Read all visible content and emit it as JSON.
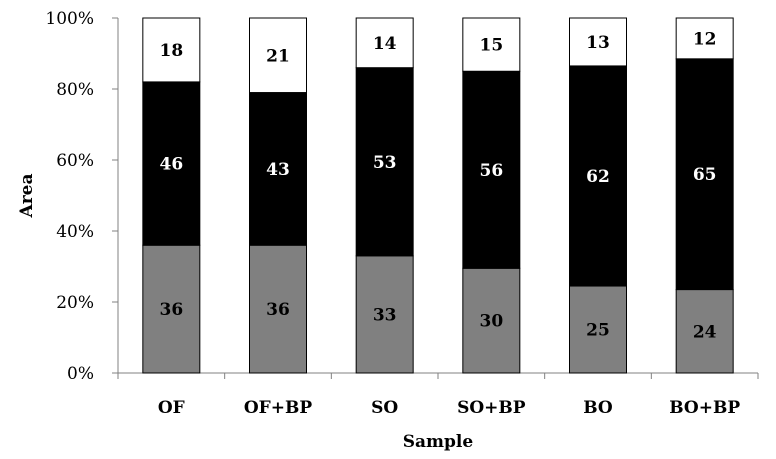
{
  "chart_data": {
    "type": "bar",
    "stacked": true,
    "categories": [
      "OF",
      "OF+BP",
      "SO",
      "SO+BP",
      "BO",
      "BO+BP"
    ],
    "series": [
      {
        "values": [
          36,
          36,
          33,
          30,
          25,
          24
        ],
        "color": "#808080",
        "label_color": "#000000"
      },
      {
        "values": [
          46,
          43,
          53,
          56,
          62,
          65
        ],
        "color": "#000000",
        "label_color": "#ffffff"
      },
      {
        "values": [
          18,
          21,
          14,
          15,
          13,
          12
        ],
        "color": "#ffffff",
        "label_color": "#000000"
      }
    ],
    "bar_heights_pct": [
      [
        36,
        46,
        18
      ],
      [
        36,
        43,
        21
      ],
      [
        33,
        53,
        14
      ],
      [
        29.5,
        55.5,
        15
      ],
      [
        24.5,
        62,
        13.5
      ],
      [
        23.5,
        65,
        11.5
      ]
    ],
    "xlabel": "Sample",
    "ylabel": "Area",
    "ylim": [
      0,
      100
    ],
    "yticks": [
      "0%",
      "20%",
      "40%",
      "60%",
      "80%",
      "100%"
    ],
    "grid": false,
    "legend": "none"
  }
}
